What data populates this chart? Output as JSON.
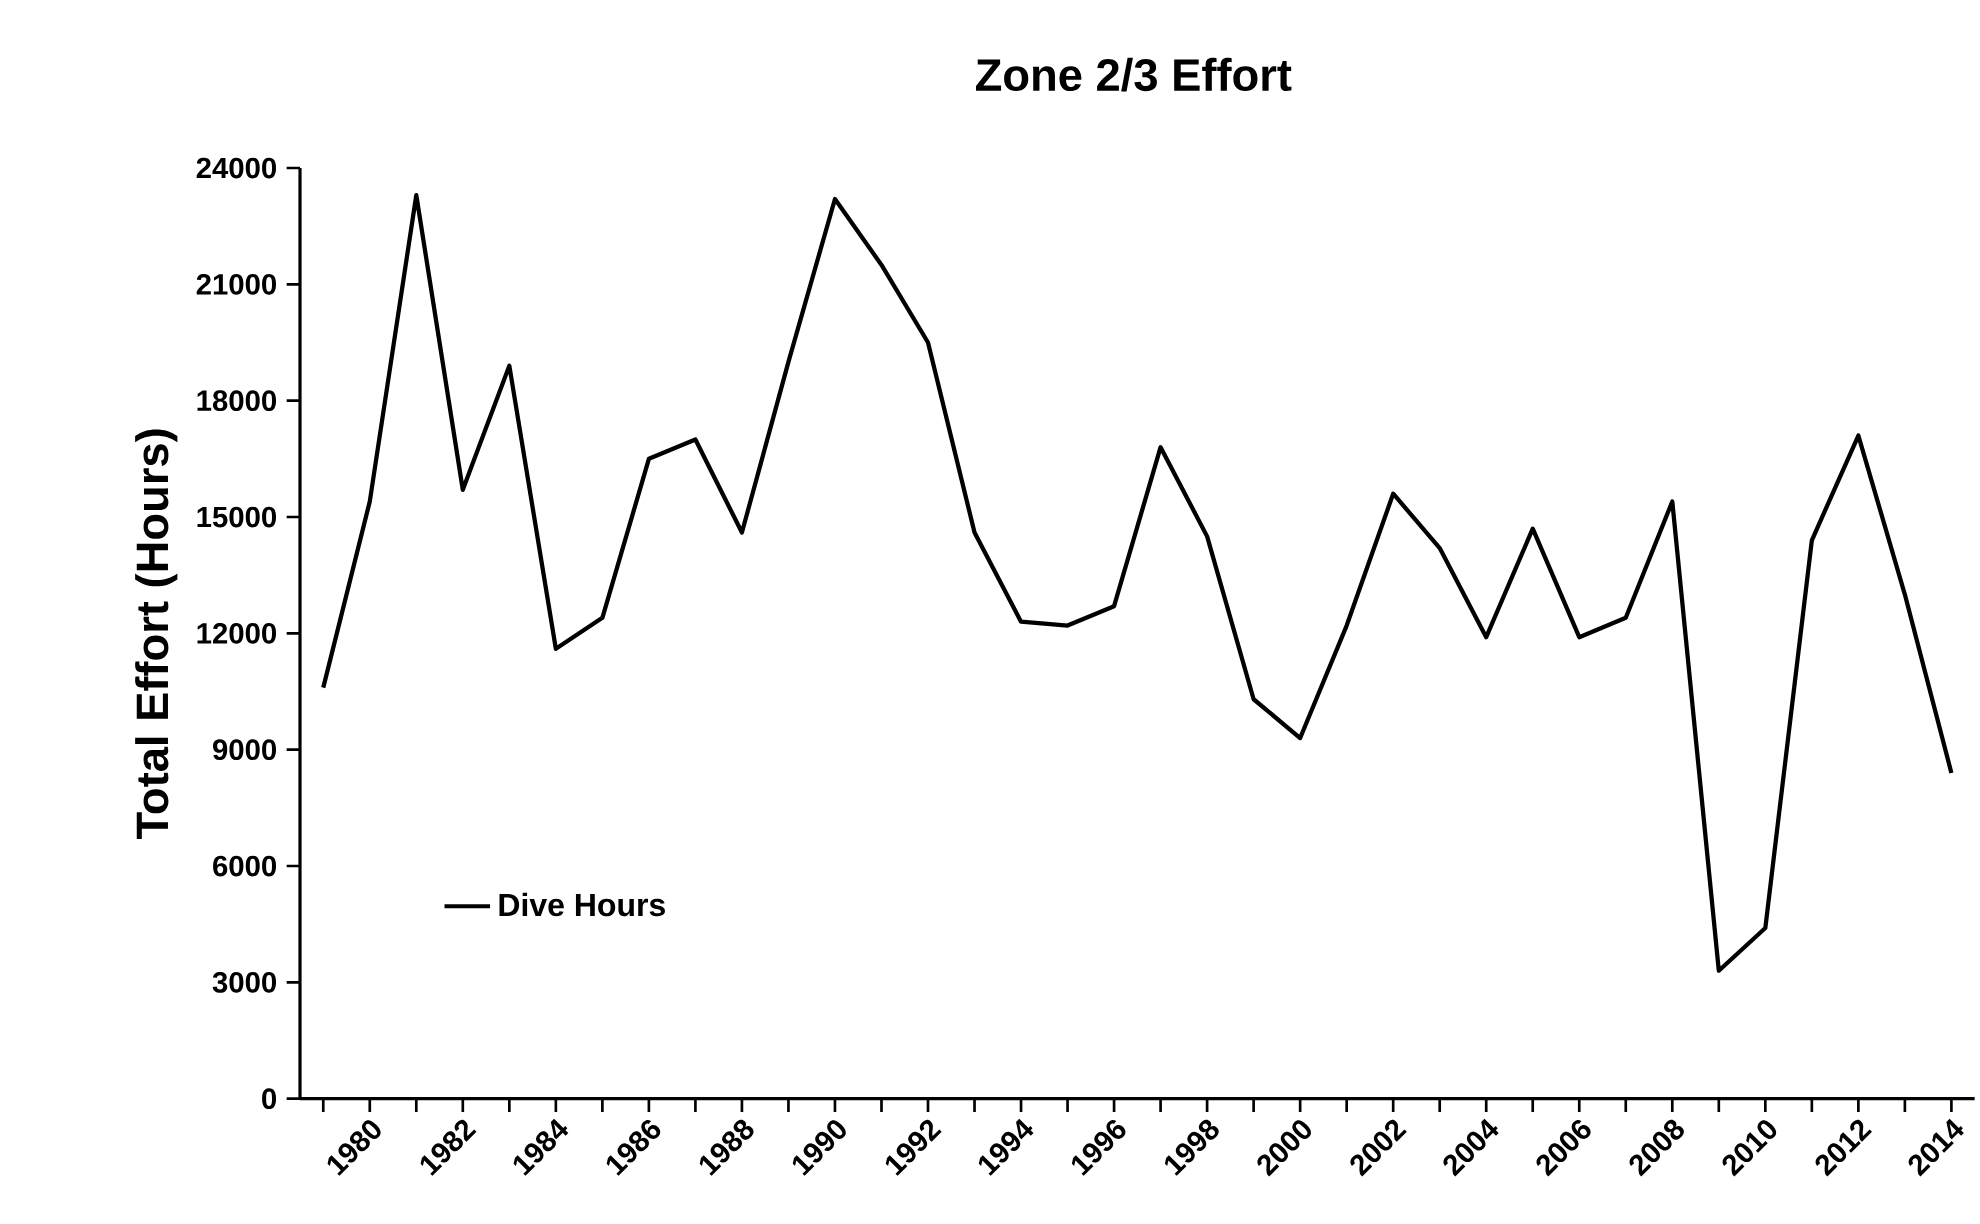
{
  "chart_data": {
    "type": "line",
    "title": "Zone 2/3 Effort",
    "ylabel": "Total Effort (Hours)",
    "categories": [
      null,
      "1980",
      null,
      "1982",
      null,
      "1984",
      null,
      "1986",
      null,
      "1988",
      null,
      "1990",
      null,
      "1992",
      null,
      "1994",
      null,
      "1996",
      null,
      "1998",
      null,
      "2000",
      null,
      "2002",
      null,
      "2004",
      null,
      "2006",
      null,
      "2008",
      null,
      "2010",
      null,
      "2012",
      null,
      "2014"
    ],
    "series": [
      {
        "name": "Dive Hours",
        "color": "#000000",
        "values": [
          10600,
          15400,
          23300,
          15700,
          18900,
          11600,
          12400,
          16500,
          17000,
          14600,
          19000,
          23200,
          21500,
          19500,
          14600,
          12300,
          12200,
          12700,
          16800,
          14500,
          10300,
          9300,
          12200,
          15600,
          14200,
          11900,
          14700,
          11900,
          12400,
          15400,
          3300,
          4400,
          14400,
          17100,
          13000,
          8400
        ]
      }
    ],
    "ylim": [
      0,
      24000
    ],
    "yticks": [
      0,
      3000,
      6000,
      9000,
      12000,
      15000,
      18000,
      21000,
      24000
    ],
    "legend": "bottom left",
    "line_style": "solid",
    "marker": "none"
  }
}
